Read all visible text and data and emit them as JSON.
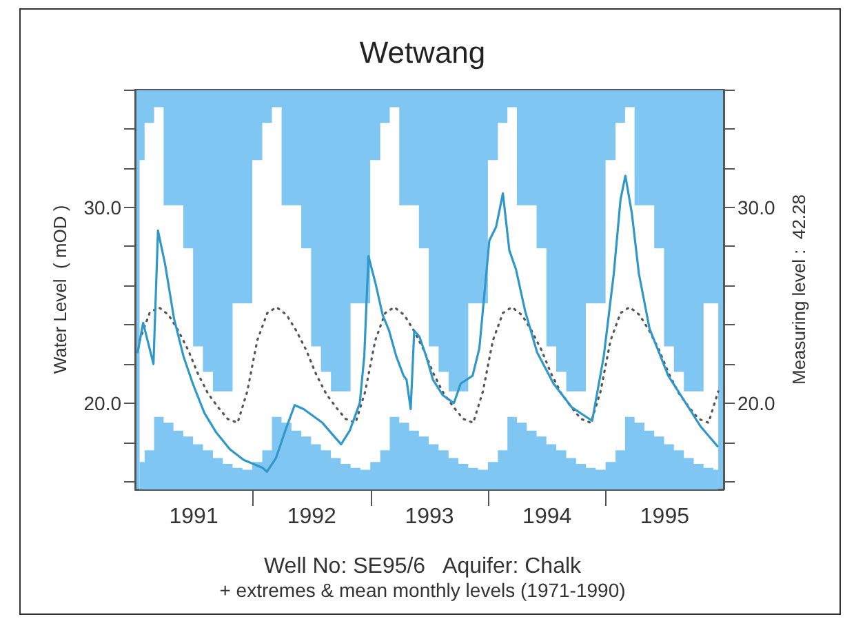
{
  "chart_data": {
    "type": "line",
    "title": "Wetwang",
    "ylabel": "Water Level  ( mOD )",
    "y2label": "Measuring level :  42.28",
    "annotations": [
      "Well No: SE95/6   Aquifer: Chalk",
      "+ extremes & mean monthly levels (1971-1990)"
    ],
    "xlim": [
      "1991-01-01",
      "1996-01-01"
    ],
    "xticks": [
      {
        "value": "1991-07-02",
        "label": "1991"
      },
      {
        "value": "1992-01-01",
        "label": null
      },
      {
        "value": "1992-07-02",
        "label": "1992"
      },
      {
        "value": "1993-01-01",
        "label": null
      },
      {
        "value": "1993-07-02",
        "label": "1993"
      },
      {
        "value": "1994-01-01",
        "label": null
      },
      {
        "value": "1994-07-02",
        "label": "1994"
      },
      {
        "value": "1995-01-01",
        "label": null
      },
      {
        "value": "1995-07-02",
        "label": "1995"
      }
    ],
    "ylim": [
      15.6,
      36
    ],
    "yticks": [
      {
        "value": 16,
        "label": null
      },
      {
        "value": 18,
        "label": null
      },
      {
        "value": 20,
        "label": "20.0"
      },
      {
        "value": 22,
        "label": null
      },
      {
        "value": 24,
        "label": null
      },
      {
        "value": 26,
        "label": null
      },
      {
        "value": 28,
        "label": null
      },
      {
        "value": 30,
        "label": "30.0"
      },
      {
        "value": 32,
        "label": null
      },
      {
        "value": 34,
        "label": null
      },
      {
        "value": 36,
        "label": null
      }
    ],
    "y2lim": [
      15.6,
      36
    ],
    "y2ticks": [
      {
        "value": 16,
        "label": null
      },
      {
        "value": 18,
        "label": null
      },
      {
        "value": 20,
        "label": "20.0"
      },
      {
        "value": 22,
        "label": null
      },
      {
        "value": 24,
        "label": null
      },
      {
        "value": 26,
        "label": null
      },
      {
        "value": 28,
        "label": null
      },
      {
        "value": 30,
        "label": "30.0"
      },
      {
        "value": 32,
        "label": null
      },
      {
        "value": 34,
        "label": null
      },
      {
        "value": 36,
        "label": null
      }
    ],
    "grid": false,
    "marker": "none",
    "x": [
      "1991-01-15",
      "1991-02-15",
      "1991-03-15",
      "1991-04-15",
      "1991-05-15",
      "1991-06-15",
      "1991-07-15",
      "1991-08-15",
      "1991-09-15",
      "1991-10-15",
      "1991-11-15",
      "1991-12-15",
      "1992-01-15",
      "1992-02-15",
      "1992-03-15",
      "1992-04-15",
      "1992-05-15",
      "1992-06-15",
      "1992-07-15",
      "1992-08-15",
      "1992-09-15",
      "1992-10-15",
      "1992-11-15",
      "1992-12-15",
      "1993-01-15",
      "1993-02-15",
      "1993-03-15",
      "1993-04-15",
      "1993-05-15",
      "1993-06-15",
      "1993-07-15",
      "1993-08-15",
      "1993-09-15",
      "1993-10-15",
      "1993-11-15",
      "1993-12-15",
      "1994-01-15",
      "1994-02-15",
      "1994-03-15",
      "1994-04-15",
      "1994-05-15",
      "1994-06-15",
      "1994-07-15",
      "1994-08-15",
      "1994-09-15",
      "1994-10-15",
      "1994-11-15",
      "1994-12-15",
      "1995-01-15",
      "1995-02-15",
      "1995-03-15",
      "1995-04-15",
      "1995-05-15",
      "1995-06-15",
      "1995-07-15",
      "1995-08-15",
      "1995-09-15",
      "1995-10-15",
      "1995-11-15",
      "1995-12-15"
    ],
    "series": [
      {
        "type": "area",
        "color": "#ffffff",
        "values": [
          32.4,
          34.3,
          35.1,
          30.1,
          30.1,
          27.9,
          22.9,
          21.6,
          20.6,
          20.6,
          25.1,
          25.1,
          32.4,
          34.3,
          35.1,
          30.1,
          30.1,
          27.9,
          22.9,
          21.6,
          20.6,
          20.6,
          25.1,
          25.1,
          32.4,
          34.3,
          35.1,
          30.1,
          30.1,
          27.9,
          22.9,
          21.6,
          20.6,
          20.6,
          25.1,
          25.1,
          32.4,
          34.3,
          35.1,
          30.1,
          30.1,
          27.9,
          22.9,
          21.6,
          20.6,
          20.6,
          25.1,
          25.1,
          32.4,
          34.3,
          35.1,
          30.1,
          30.1,
          27.9,
          22.9,
          21.6,
          20.6,
          20.6,
          25.1,
          25.1
        ]
      },
      {
        "type": "area",
        "color": "#80c6f2",
        "values": [
          17.0,
          17.6,
          19.3,
          19.0,
          18.6,
          18.3,
          17.9,
          17.6,
          17.2,
          16.9,
          16.7,
          16.6,
          17.0,
          17.6,
          19.3,
          19.0,
          18.6,
          18.3,
          17.9,
          17.6,
          17.2,
          16.9,
          16.7,
          16.6,
          17.0,
          17.6,
          19.3,
          19.0,
          18.6,
          18.3,
          17.9,
          17.6,
          17.2,
          16.9,
          16.7,
          16.6,
          17.0,
          17.6,
          19.3,
          19.0,
          18.6,
          18.3,
          17.9,
          17.6,
          17.2,
          16.9,
          16.7,
          16.6,
          17.0,
          17.6,
          19.3,
          19.0,
          18.6,
          18.3,
          17.9,
          17.6,
          17.2,
          16.9,
          16.7,
          16.6
        ]
      },
      {
        "color": "#555555",
        "line_style": "dotted",
        "values": [
          23.2,
          24.6,
          24.9,
          24.5,
          23.7,
          22.7,
          21.5,
          20.5,
          19.8,
          19.2,
          19.0,
          20.6,
          23.2,
          24.6,
          24.9,
          24.5,
          23.7,
          22.7,
          21.5,
          20.5,
          19.8,
          19.2,
          19.0,
          20.6,
          23.2,
          24.6,
          24.9,
          24.5,
          23.7,
          22.7,
          21.5,
          20.5,
          19.8,
          19.2,
          19.0,
          20.6,
          23.2,
          24.6,
          24.9,
          24.5,
          23.7,
          22.7,
          21.5,
          20.5,
          19.8,
          19.2,
          19.0,
          20.6,
          23.2,
          24.6,
          24.9,
          24.5,
          23.7,
          22.7,
          21.5,
          20.5,
          19.8,
          19.2,
          19.0,
          20.6
        ]
      },
      {
        "color": "#2f98c8",
        "line_style": "solid",
        "x": [
          "1991-01-09",
          "1991-01-26",
          "1991-02-27",
          "1991-03-13",
          "1991-04-04",
          "1991-05-02",
          "1991-05-31",
          "1991-06-29",
          "1991-08-04",
          "1991-09-10",
          "1991-10-22",
          "1991-12-04",
          "1992-02-01",
          "1992-02-14",
          "1992-03-13",
          "1992-04-11",
          "1992-05-10",
          "1992-06-07",
          "1992-08-04",
          "1992-10-01",
          "1992-10-28",
          "1992-11-28",
          "1992-12-12",
          "1992-12-25",
          "1993-01-16",
          "1993-02-07",
          "1993-02-27",
          "1993-03-21",
          "1993-04-13",
          "1993-04-22",
          "1993-05-05",
          "1993-05-16",
          "1993-06-01",
          "1993-06-22",
          "1993-07-13",
          "1993-08-13",
          "1993-09-16",
          "1993-10-07",
          "1993-11-13",
          "1993-12-04",
          "1994-01-04",
          "1994-01-25",
          "1994-02-15",
          "1994-03-07",
          "1994-03-28",
          "1994-04-25",
          "1994-06-01",
          "1994-07-22",
          "1994-09-16",
          "1994-11-19",
          "1994-12-25",
          "1995-01-25",
          "1995-02-15",
          "1995-03-02",
          "1995-03-22",
          "1995-04-13",
          "1995-05-16",
          "1995-07-13",
          "1995-09-25",
          "1995-10-10",
          "1995-10-22",
          "1995-12-13"
        ],
        "values": [
          22.6,
          24.1,
          22.0,
          28.8,
          27.1,
          24.3,
          22.4,
          21.0,
          19.5,
          18.5,
          17.65,
          17.1,
          16.7,
          16.5,
          17.2,
          18.6,
          19.9,
          19.7,
          19.0,
          17.9,
          18.6,
          20.0,
          22.4,
          27.5,
          26.1,
          24.5,
          23.7,
          22.4,
          21.4,
          21.2,
          19.7,
          23.7,
          23.4,
          22.4,
          21.2,
          20.4,
          20.0,
          21.0,
          21.4,
          22.8,
          28.3,
          29.0,
          30.7,
          27.8,
          26.8,
          24.7,
          22.6,
          21.0,
          19.8,
          19.1,
          22.4,
          26.6,
          30.4,
          31.6,
          29.7,
          26.6,
          23.8,
          21.4,
          19.5,
          19.1,
          18.8,
          17.8
        ]
      }
    ]
  }
}
